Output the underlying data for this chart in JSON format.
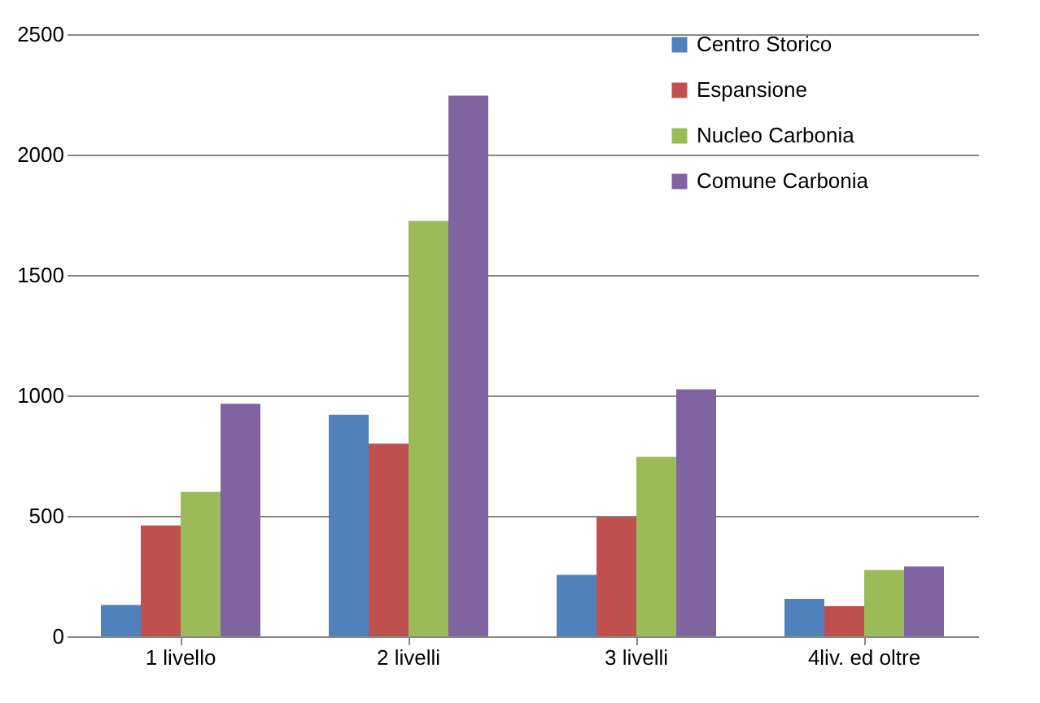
{
  "chart_data": {
    "type": "bar",
    "categories": [
      "1 livello",
      "2 livelli",
      "3 livelli",
      "4liv. ed oltre"
    ],
    "series": [
      {
        "name": "Centro Storico",
        "color": "#4f81bd",
        "values": [
          130,
          920,
          255,
          155
        ]
      },
      {
        "name": "Espansione",
        "color": "#c0504d",
        "values": [
          460,
          800,
          495,
          125
        ]
      },
      {
        "name": "Nucleo Carbonia",
        "color": "#9bbb59",
        "values": [
          600,
          1725,
          745,
          275
        ]
      },
      {
        "name": "Comune Carbonia",
        "color": "#8064a2",
        "values": [
          965,
          2245,
          1025,
          290
        ]
      }
    ],
    "ylim": [
      0,
      2500
    ],
    "yticks": [
      0,
      500,
      1000,
      1500,
      2000,
      2500
    ],
    "grid": "y",
    "legend": "top right"
  }
}
